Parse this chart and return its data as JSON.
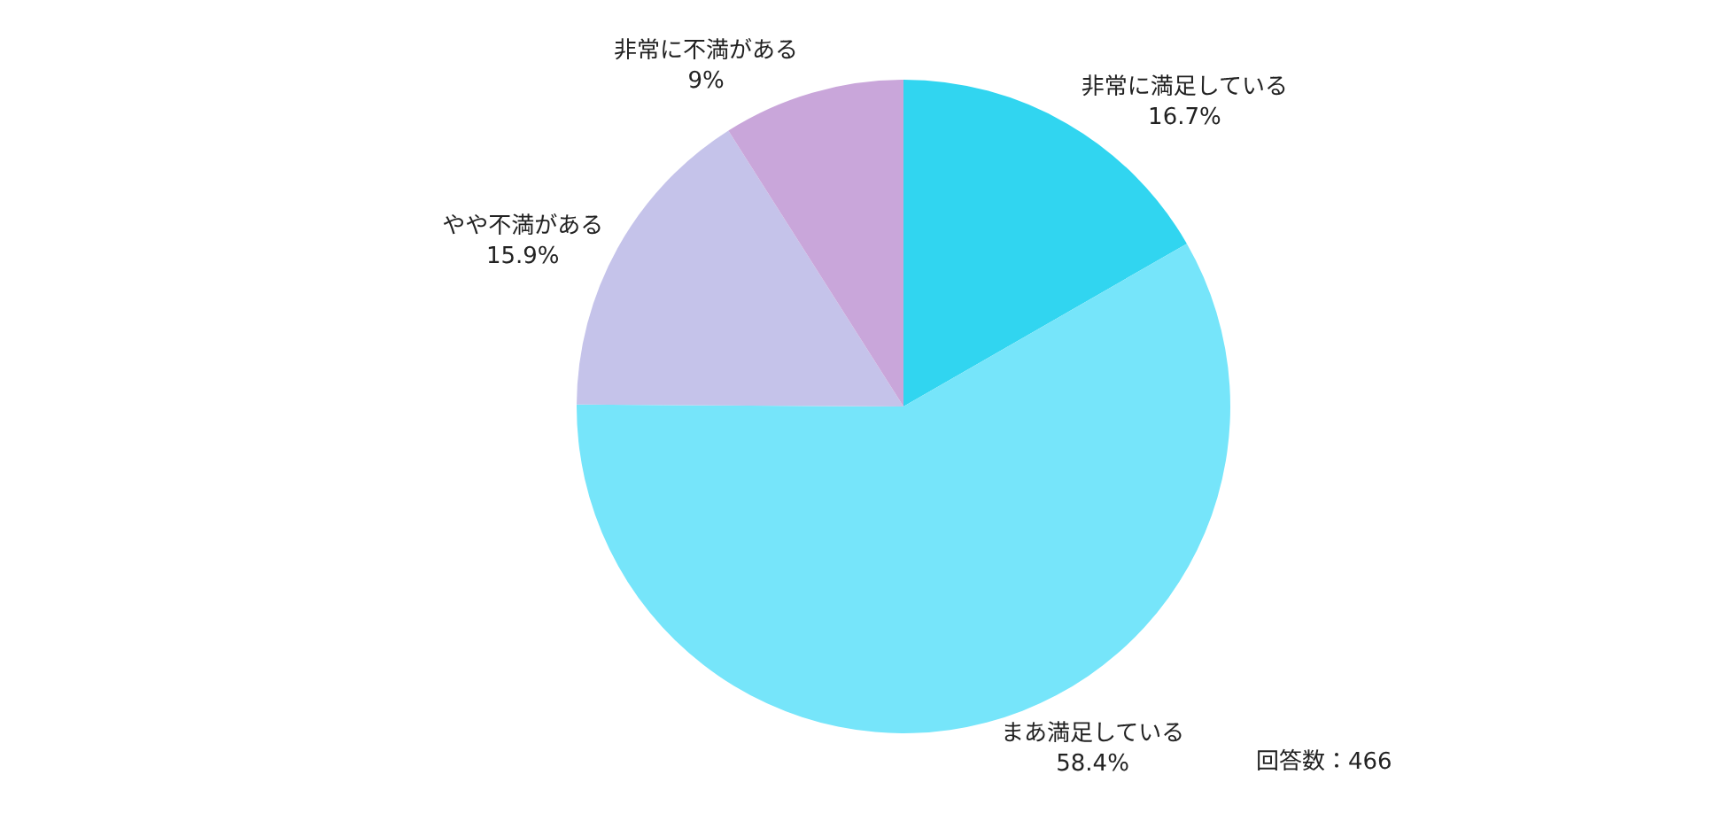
{
  "chart_data": {
    "type": "pie",
    "categories": [
      "非常に満足している",
      "まあ満足している",
      "やや不満がある",
      "非常に不満がある"
    ],
    "values": [
      16.7,
      58.4,
      15.9,
      9
    ],
    "colors": [
      "#31d5f0",
      "#76e5fa",
      "#c5c3ea",
      "#c9a6da"
    ],
    "value_labels": [
      "16.7%",
      "58.4%",
      "15.9%",
      "9%"
    ],
    "annotations": [
      "回答数：466"
    ],
    "legend": false
  }
}
